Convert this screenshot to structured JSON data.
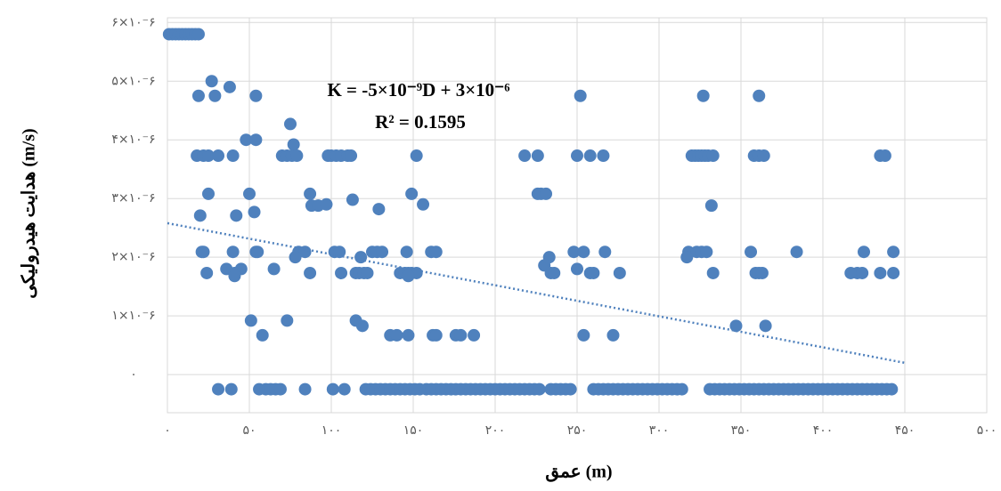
{
  "chart_data": {
    "type": "scatter",
    "x_label": "عمق (m)",
    "y_label": "هدایت هیدرولیکی (m/s)",
    "equation": "K = -5×10⁻⁹D + 3×10⁻⁶",
    "r_squared": "R² = 0.1595",
    "color": "#4f81bd",
    "grid": true,
    "xlim": [
      0,
      500
    ],
    "ylim": [
      -6.5e-07,
      6.08e-06
    ],
    "xticks": [
      {
        "value": 0,
        "label": "۰"
      },
      {
        "value": 50,
        "label": "۵۰"
      },
      {
        "value": 100,
        "label": "۱۰۰"
      },
      {
        "value": 150,
        "label": "۱۵۰"
      },
      {
        "value": 200,
        "label": "۲۰۰"
      },
      {
        "value": 250,
        "label": "۲۵۰"
      },
      {
        "value": 300,
        "label": "۳۰۰"
      },
      {
        "value": 350,
        "label": "۳۵۰"
      },
      {
        "value": 400,
        "label": "۴۰۰"
      },
      {
        "value": 450,
        "label": "۴۵۰"
      },
      {
        "value": 500,
        "label": "۵۰۰"
      }
    ],
    "yticks": [
      {
        "value": 0,
        "label": "۰"
      },
      {
        "value": 1e-06,
        "label": "۱×۱۰⁻۶"
      },
      {
        "value": 2e-06,
        "label": "۲×۱۰⁻۶"
      },
      {
        "value": 3e-06,
        "label": "۳×۱۰⁻۶"
      },
      {
        "value": 4e-06,
        "label": "۴×۱۰⁻۶"
      },
      {
        "value": 5e-06,
        "label": "۵×۱۰⁻۶"
      },
      {
        "value": 6e-06,
        "label": "۶×۱۰⁻۶"
      }
    ],
    "trendline": {
      "color": "#4f81bd",
      "x": [
        0,
        450
      ],
      "values": [
        2.58e-06,
        2e-07
      ]
    },
    "x": [
      1,
      3,
      5,
      7,
      9,
      11,
      13,
      15,
      17,
      19,
      27,
      38,
      19,
      29,
      54,
      252,
      327,
      361,
      75,
      48,
      54,
      77,
      18,
      22,
      25,
      31,
      40,
      70,
      73,
      76,
      79,
      98,
      100,
      103,
      106,
      110,
      112,
      152,
      218,
      226,
      250,
      258,
      266,
      320,
      322,
      324,
      326,
      328,
      330,
      333,
      358,
      361,
      364,
      435,
      438,
      25,
      50,
      87,
      149,
      226,
      228,
      231,
      113,
      88,
      92,
      332,
      97,
      156,
      129,
      53,
      20,
      42,
      21,
      22,
      40,
      54,
      55,
      80,
      84,
      102,
      105,
      125,
      128,
      131,
      146,
      161,
      164,
      248,
      254,
      267,
      318,
      323,
      326,
      329,
      356,
      384,
      425,
      443,
      78,
      118,
      233,
      317,
      230,
      36,
      45,
      65,
      250,
      24,
      41,
      87,
      106,
      115,
      117,
      120,
      122,
      142,
      145,
      147,
      149,
      152,
      234,
      236,
      258,
      260,
      276,
      333,
      359,
      361,
      363,
      417,
      421,
      424,
      435,
      443,
      41,
      147,
      51,
      73,
      115,
      119,
      347,
      365,
      58,
      136,
      140,
      147,
      162,
      164,
      176,
      179,
      187,
      254,
      272,
      31,
      39,
      56,
      60,
      63,
      66,
      69,
      84,
      101,
      108,
      121,
      124,
      127,
      130,
      133,
      136,
      139,
      142,
      145,
      148,
      151,
      154,
      158,
      161,
      164,
      167,
      170,
      173,
      176,
      179,
      182,
      185,
      188,
      191,
      194,
      197,
      200,
      203,
      206,
      209,
      212,
      215,
      218,
      221,
      224,
      227,
      234,
      237,
      240,
      243,
      246,
      260,
      263,
      266,
      269,
      272,
      275,
      278,
      281,
      284,
      287,
      290,
      293,
      296,
      299,
      302,
      305,
      308,
      311,
      314,
      331,
      334,
      337,
      340,
      343,
      346,
      349,
      352,
      355,
      358,
      361,
      364,
      367,
      370,
      373,
      376,
      379,
      382,
      385,
      388,
      391,
      394,
      397,
      400,
      403,
      406,
      409,
      412,
      415,
      418,
      421,
      424,
      427,
      430,
      433,
      436,
      439,
      442
    ],
    "values": [
      5.8e-06,
      5.8e-06,
      5.8e-06,
      5.8e-06,
      5.8e-06,
      5.8e-06,
      5.8e-06,
      5.8e-06,
      5.8e-06,
      5.8e-06,
      5e-06,
      4.9e-06,
      4.75e-06,
      4.75e-06,
      4.75e-06,
      4.75e-06,
      4.75e-06,
      4.75e-06,
      4.27e-06,
      4e-06,
      4e-06,
      3.92e-06,
      3.73e-06,
      3.73e-06,
      3.73e-06,
      3.73e-06,
      3.73e-06,
      3.73e-06,
      3.73e-06,
      3.73e-06,
      3.73e-06,
      3.73e-06,
      3.73e-06,
      3.73e-06,
      3.73e-06,
      3.73e-06,
      3.73e-06,
      3.73e-06,
      3.73e-06,
      3.73e-06,
      3.73e-06,
      3.73e-06,
      3.73e-06,
      3.73e-06,
      3.73e-06,
      3.73e-06,
      3.73e-06,
      3.73e-06,
      3.73e-06,
      3.73e-06,
      3.73e-06,
      3.73e-06,
      3.73e-06,
      3.73e-06,
      3.73e-06,
      3.08e-06,
      3.08e-06,
      3.08e-06,
      3.08e-06,
      3.08e-06,
      3.08e-06,
      3.08e-06,
      2.98e-06,
      2.88e-06,
      2.88e-06,
      2.88e-06,
      2.9e-06,
      2.9e-06,
      2.82e-06,
      2.77e-06,
      2.71e-06,
      2.71e-06,
      2.09e-06,
      2.09e-06,
      2.09e-06,
      2.09e-06,
      2.09e-06,
      2.09e-06,
      2.09e-06,
      2.09e-06,
      2.09e-06,
      2.09e-06,
      2.09e-06,
      2.09e-06,
      2.09e-06,
      2.09e-06,
      2.09e-06,
      2.09e-06,
      2.09e-06,
      2.09e-06,
      2.09e-06,
      2.09e-06,
      2.09e-06,
      2.09e-06,
      2.09e-06,
      2.09e-06,
      2.09e-06,
      2.09e-06,
      2e-06,
      2e-06,
      2e-06,
      2e-06,
      1.86e-06,
      1.8e-06,
      1.8e-06,
      1.8e-06,
      1.8e-06,
      1.73e-06,
      1.73e-06,
      1.73e-06,
      1.73e-06,
      1.73e-06,
      1.73e-06,
      1.73e-06,
      1.73e-06,
      1.73e-06,
      1.73e-06,
      1.73e-06,
      1.73e-06,
      1.73e-06,
      1.73e-06,
      1.73e-06,
      1.73e-06,
      1.73e-06,
      1.73e-06,
      1.73e-06,
      1.73e-06,
      1.73e-06,
      1.73e-06,
      1.73e-06,
      1.73e-06,
      1.73e-06,
      1.73e-06,
      1.73e-06,
      1.68e-06,
      1.68e-06,
      9.2e-07,
      9.2e-07,
      9.2e-07,
      8.3e-07,
      8.3e-07,
      8.3e-07,
      6.7e-07,
      6.7e-07,
      6.7e-07,
      6.7e-07,
      6.7e-07,
      6.7e-07,
      6.7e-07,
      6.7e-07,
      6.7e-07,
      6.7e-07,
      6.7e-07,
      -2.5e-07,
      -2.5e-07,
      -2.5e-07,
      -2.5e-07,
      -2.5e-07,
      -2.5e-07,
      -2.5e-07,
      -2.5e-07,
      -2.5e-07,
      -2.5e-07,
      -2.5e-07,
      -2.5e-07,
      -2.5e-07,
      -2.5e-07,
      -2.5e-07,
      -2.5e-07,
      -2.5e-07,
      -2.5e-07,
      -2.5e-07,
      -2.5e-07,
      -2.5e-07,
      -2.5e-07,
      -2.5e-07,
      -2.5e-07,
      -2.5e-07,
      -2.5e-07,
      -2.5e-07,
      -2.5e-07,
      -2.5e-07,
      -2.5e-07,
      -2.5e-07,
      -2.5e-07,
      -2.5e-07,
      -2.5e-07,
      -2.5e-07,
      -2.5e-07,
      -2.5e-07,
      -2.5e-07,
      -2.5e-07,
      -2.5e-07,
      -2.5e-07,
      -2.5e-07,
      -2.5e-07,
      -2.5e-07,
      -2.5e-07,
      -2.5e-07,
      -2.5e-07,
      -2.5e-07,
      -2.5e-07,
      -2.5e-07,
      -2.5e-07,
      -2.5e-07,
      -2.5e-07,
      -2.5e-07,
      -2.5e-07,
      -2.5e-07,
      -2.5e-07,
      -2.5e-07,
      -2.5e-07,
      -2.5e-07,
      -2.5e-07,
      -2.5e-07,
      -2.5e-07,
      -2.5e-07,
      -2.5e-07,
      -2.5e-07,
      -2.5e-07,
      -2.5e-07,
      -2.5e-07,
      -2.5e-07,
      -2.5e-07,
      -2.5e-07,
      -2.5e-07,
      -2.5e-07,
      -2.5e-07,
      -2.5e-07,
      -2.5e-07,
      -2.5e-07,
      -2.5e-07,
      -2.5e-07,
      -2.5e-07,
      -2.5e-07,
      -2.5e-07,
      -2.5e-07,
      -2.5e-07,
      -2.5e-07,
      -2.5e-07,
      -2.5e-07,
      -2.5e-07,
      -2.5e-07,
      -2.5e-07,
      -2.5e-07,
      -2.5e-07,
      -2.5e-07,
      -2.5e-07,
      -2.5e-07,
      -2.5e-07,
      -2.5e-07,
      -2.5e-07,
      -2.5e-07,
      -2.5e-07,
      -2.5e-07,
      -2.5e-07,
      -2.5e-07,
      -2.5e-07,
      -2.5e-07,
      -2.5e-07,
      -2.5e-07
    ]
  }
}
